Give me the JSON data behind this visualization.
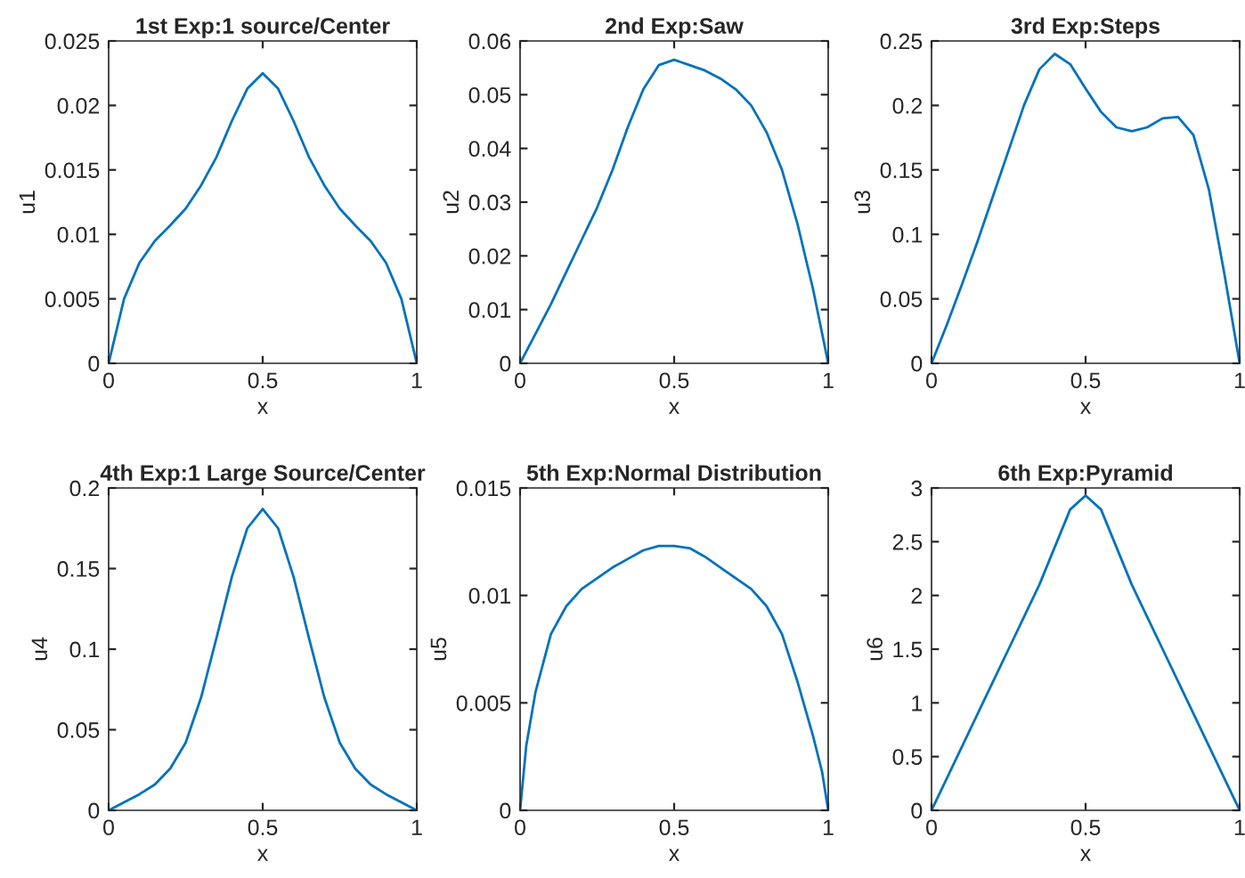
{
  "chart_data": [
    {
      "type": "line",
      "title": "1st Exp:1 source/Center",
      "xlabel": "x",
      "ylabel": "u1",
      "xlim": [
        0,
        1
      ],
      "xticks": [
        0,
        0.5,
        1
      ],
      "ylim": [
        0,
        0.025
      ],
      "yticks": [
        0,
        0.005,
        0.01,
        0.015,
        0.02,
        0.025
      ],
      "grid": false,
      "x": [
        0,
        0.05,
        0.1,
        0.15,
        0.2,
        0.25,
        0.3,
        0.35,
        0.4,
        0.45,
        0.5,
        0.55,
        0.6,
        0.65,
        0.7,
        0.75,
        0.8,
        0.85,
        0.9,
        0.95,
        1
      ],
      "series": [
        {
          "color": "#0072bd",
          "values": [
            0,
            0.005,
            0.0078,
            0.0095,
            0.0107,
            0.012,
            0.0138,
            0.016,
            0.0188,
            0.0213,
            0.0225,
            0.0213,
            0.0188,
            0.016,
            0.0138,
            0.012,
            0.0107,
            0.0095,
            0.0078,
            0.005,
            0
          ]
        }
      ]
    },
    {
      "type": "line",
      "title": "2nd Exp:Saw",
      "xlabel": "x",
      "ylabel": "u2",
      "xlim": [
        0,
        1
      ],
      "xticks": [
        0,
        0.5,
        1
      ],
      "ylim": [
        0,
        0.06
      ],
      "yticks": [
        0,
        0.01,
        0.02,
        0.03,
        0.04,
        0.05,
        0.06
      ],
      "grid": false,
      "x": [
        0,
        0.05,
        0.1,
        0.15,
        0.2,
        0.25,
        0.3,
        0.35,
        0.4,
        0.45,
        0.5,
        0.55,
        0.6,
        0.65,
        0.7,
        0.75,
        0.8,
        0.85,
        0.9,
        0.95,
        1
      ],
      "series": [
        {
          "color": "#0072bd",
          "values": [
            0,
            0.0055,
            0.011,
            0.017,
            0.023,
            0.029,
            0.036,
            0.044,
            0.051,
            0.0555,
            0.0565,
            0.0555,
            0.0545,
            0.053,
            0.051,
            0.048,
            0.043,
            0.036,
            0.026,
            0.014,
            0
          ]
        }
      ]
    },
    {
      "type": "line",
      "title": "3rd Exp:Steps",
      "xlabel": "x",
      "ylabel": "u3",
      "xlim": [
        0,
        1
      ],
      "xticks": [
        0,
        0.5,
        1
      ],
      "ylim": [
        0,
        0.25
      ],
      "yticks": [
        0,
        0.05,
        0.1,
        0.15,
        0.2,
        0.25
      ],
      "grid": false,
      "x": [
        0,
        0.05,
        0.1,
        0.15,
        0.2,
        0.25,
        0.3,
        0.35,
        0.4,
        0.45,
        0.5,
        0.55,
        0.6,
        0.65,
        0.7,
        0.75,
        0.8,
        0.85,
        0.9,
        0.95,
        1
      ],
      "series": [
        {
          "color": "#0072bd",
          "values": [
            0,
            0.03,
            0.062,
            0.095,
            0.13,
            0.165,
            0.2,
            0.228,
            0.24,
            0.232,
            0.213,
            0.195,
            0.183,
            0.18,
            0.183,
            0.19,
            0.191,
            0.177,
            0.135,
            0.07,
            0
          ]
        }
      ]
    },
    {
      "type": "line",
      "title": "4th Exp:1 Large Source/Center",
      "xlabel": "x",
      "ylabel": "u4",
      "xlim": [
        0,
        1
      ],
      "xticks": [
        0,
        0.5,
        1
      ],
      "ylim": [
        0,
        0.2
      ],
      "yticks": [
        0,
        0.05,
        0.1,
        0.15,
        0.2
      ],
      "grid": false,
      "x": [
        0,
        0.05,
        0.1,
        0.15,
        0.2,
        0.25,
        0.3,
        0.35,
        0.4,
        0.45,
        0.5,
        0.55,
        0.6,
        0.65,
        0.7,
        0.75,
        0.8,
        0.85,
        0.9,
        0.95,
        1
      ],
      "series": [
        {
          "color": "#0072bd",
          "values": [
            0,
            0.005,
            0.01,
            0.016,
            0.026,
            0.042,
            0.07,
            0.107,
            0.145,
            0.175,
            0.187,
            0.175,
            0.145,
            0.107,
            0.07,
            0.042,
            0.026,
            0.016,
            0.01,
            0.005,
            0
          ]
        }
      ]
    },
    {
      "type": "line",
      "title": "5th Exp:Normal Distribution",
      "xlabel": "x",
      "ylabel": "u5",
      "xlim": [
        0,
        1
      ],
      "xticks": [
        0,
        0.5,
        1
      ],
      "ylim": [
        0,
        0.015
      ],
      "yticks": [
        0,
        0.005,
        0.01,
        0.015
      ],
      "grid": false,
      "x": [
        0,
        0.02,
        0.05,
        0.1,
        0.15,
        0.2,
        0.25,
        0.3,
        0.35,
        0.4,
        0.45,
        0.5,
        0.55,
        0.6,
        0.65,
        0.7,
        0.75,
        0.8,
        0.85,
        0.9,
        0.95,
        0.98,
        1
      ],
      "series": [
        {
          "color": "#0072bd",
          "values": [
            0,
            0.003,
            0.0055,
            0.0082,
            0.0095,
            0.0103,
            0.0108,
            0.0113,
            0.0117,
            0.0121,
            0.0123,
            0.0123,
            0.0122,
            0.0118,
            0.0113,
            0.0108,
            0.0103,
            0.0095,
            0.0082,
            0.006,
            0.0035,
            0.0018,
            0
          ]
        }
      ]
    },
    {
      "type": "line",
      "title": "6th Exp:Pyramid",
      "xlabel": "x",
      "ylabel": "u6",
      "xlim": [
        0,
        1
      ],
      "xticks": [
        0,
        0.5,
        1
      ],
      "ylim": [
        0,
        3
      ],
      "yticks": [
        0,
        0.5,
        1,
        1.5,
        2,
        2.5,
        3
      ],
      "grid": false,
      "x": [
        0,
        0.05,
        0.1,
        0.15,
        0.2,
        0.25,
        0.3,
        0.35,
        0.4,
        0.45,
        0.5,
        0.55,
        0.6,
        0.65,
        0.7,
        0.75,
        0.8,
        0.85,
        0.9,
        0.95,
        1
      ],
      "series": [
        {
          "color": "#0072bd",
          "values": [
            0,
            0.3,
            0.6,
            0.9,
            1.2,
            1.5,
            1.8,
            2.1,
            2.45,
            2.8,
            2.93,
            2.8,
            2.45,
            2.1,
            1.8,
            1.5,
            1.2,
            0.9,
            0.6,
            0.3,
            0
          ]
        }
      ]
    }
  ]
}
